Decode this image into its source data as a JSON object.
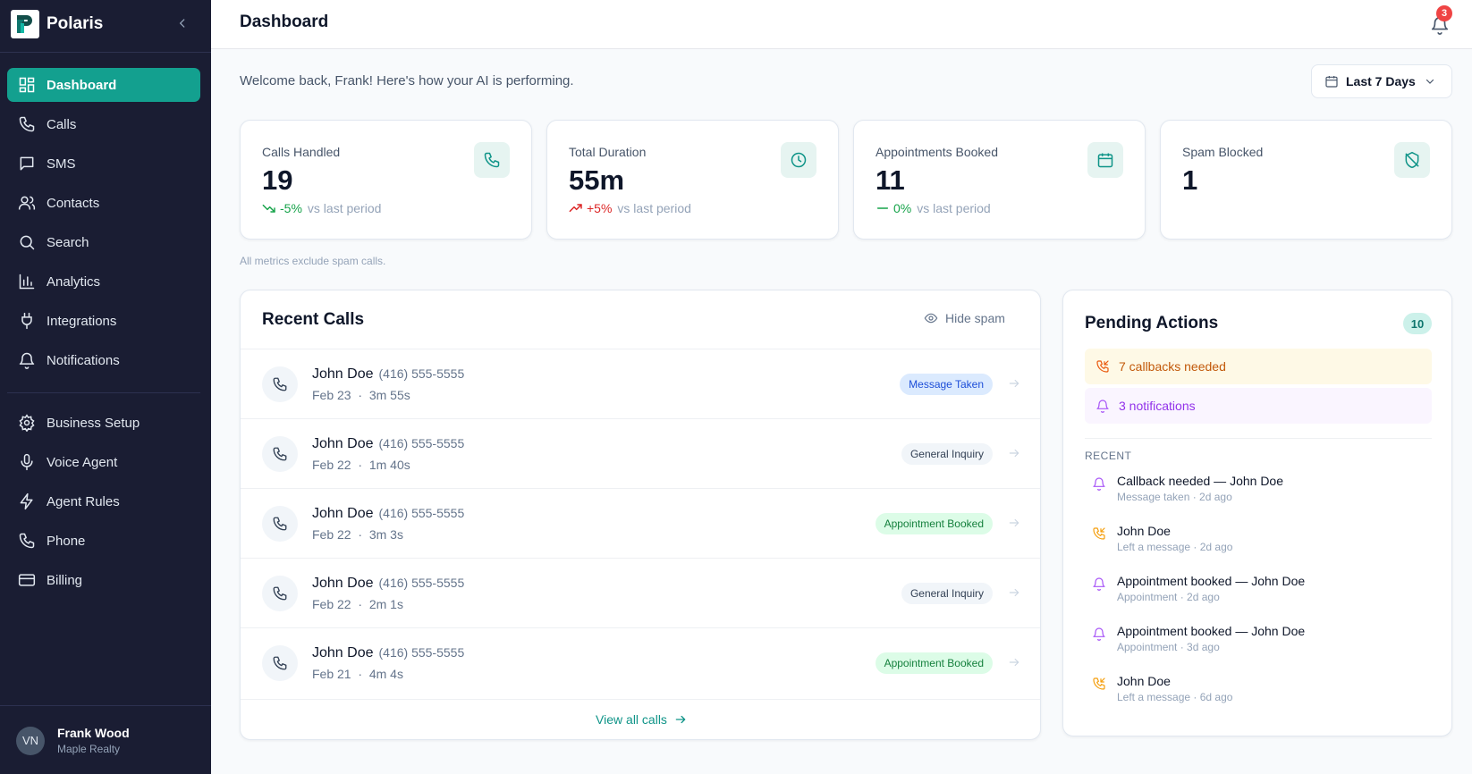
{
  "app": {
    "name": "Polaris",
    "logo_letter": "P"
  },
  "sidebar": {
    "items": [
      {
        "label": "Dashboard",
        "icon": "dashboard-icon",
        "active": true
      },
      {
        "label": "Calls",
        "icon": "phone-icon"
      },
      {
        "label": "SMS",
        "icon": "message-icon"
      },
      {
        "label": "Contacts",
        "icon": "users-icon"
      },
      {
        "label": "Search",
        "icon": "search-icon"
      },
      {
        "label": "Analytics",
        "icon": "bar-chart-icon"
      },
      {
        "label": "Integrations",
        "icon": "plug-icon"
      },
      {
        "label": "Notifications",
        "icon": "bell-icon"
      }
    ],
    "settings_items": [
      {
        "label": "Business Setup",
        "icon": "gear-icon"
      },
      {
        "label": "Voice Agent",
        "icon": "microphone-icon"
      },
      {
        "label": "Agent Rules",
        "icon": "lightning-icon"
      },
      {
        "label": "Phone",
        "icon": "phone-icon"
      },
      {
        "label": "Billing",
        "icon": "credit-card-icon"
      }
    ],
    "user": {
      "initials": "VN",
      "name": "Frank Wood",
      "org": "Maple Realty"
    }
  },
  "header": {
    "title": "Dashboard",
    "notification_count": "3"
  },
  "welcome": "Welcome back, Frank! Here's how your AI is performing.",
  "date_filter": {
    "label": "Last 7 Days"
  },
  "metrics": [
    {
      "label": "Calls Handled",
      "value": "19",
      "change": "-5%",
      "direction": "down",
      "comparison": "vs last period",
      "icon": "phone-icon"
    },
    {
      "label": "Total Duration",
      "value": "55m",
      "change": "+5%",
      "direction": "up",
      "comparison": "vs last period",
      "icon": "clock-icon"
    },
    {
      "label": "Appointments Booked",
      "value": "11",
      "change": "0%",
      "direction": "flat",
      "comparison": "vs last period",
      "icon": "calendar-icon"
    },
    {
      "label": "Spam Blocked",
      "value": "1",
      "icon": "shield-off-icon"
    }
  ],
  "footnote": "All metrics exclude spam calls.",
  "recent_calls": {
    "title": "Recent Calls",
    "hide_spam": "Hide spam",
    "view_all": "View all calls",
    "rows": [
      {
        "name": "John Doe",
        "phone": "(416) 555-5555",
        "date": "Feb 23",
        "duration": "3m 55s",
        "tag": "Message Taken",
        "tag_kind": "message"
      },
      {
        "name": "John Doe",
        "phone": "(416) 555-5555",
        "date": "Feb 22",
        "duration": "1m 40s",
        "tag": "General Inquiry",
        "tag_kind": "general"
      },
      {
        "name": "John Doe",
        "phone": "(416) 555-5555",
        "date": "Feb 22",
        "duration": "3m 3s",
        "tag": "Appointment Booked",
        "tag_kind": "appt"
      },
      {
        "name": "John Doe",
        "phone": "(416) 555-5555",
        "date": "Feb 22",
        "duration": "2m 1s",
        "tag": "General Inquiry",
        "tag_kind": "general"
      },
      {
        "name": "John Doe",
        "phone": "(416) 555-5555",
        "date": "Feb 21",
        "duration": "4m 4s",
        "tag": "Appointment Booked",
        "tag_kind": "appt"
      }
    ]
  },
  "pending": {
    "title": "Pending Actions",
    "count": "10",
    "callbacks": "7 callbacks needed",
    "notifications": "3 notifications",
    "recent_label": "RECENT",
    "recent": [
      {
        "title": "Callback needed — John Doe",
        "sub": "Message taken · 2d ago",
        "icon": "bell-icon"
      },
      {
        "title": "John Doe",
        "sub": "Left a message · 2d ago",
        "icon": "phone-callback-icon"
      },
      {
        "title": "Appointment booked — John Doe",
        "sub": "Appointment · 2d ago",
        "icon": "bell-icon"
      },
      {
        "title": "Appointment booked — John Doe",
        "sub": "Appointment · 3d ago",
        "icon": "bell-icon"
      },
      {
        "title": "John Doe",
        "sub": "Left a message · 6d ago",
        "icon": "phone-callback-icon"
      }
    ]
  },
  "colors": {
    "sidebar_bg": "#1a1d33",
    "accent": "#13a08f",
    "badge": "#ef4444",
    "trend_down_good": "#16a34a",
    "trend_up_bad": "#dc2626"
  }
}
